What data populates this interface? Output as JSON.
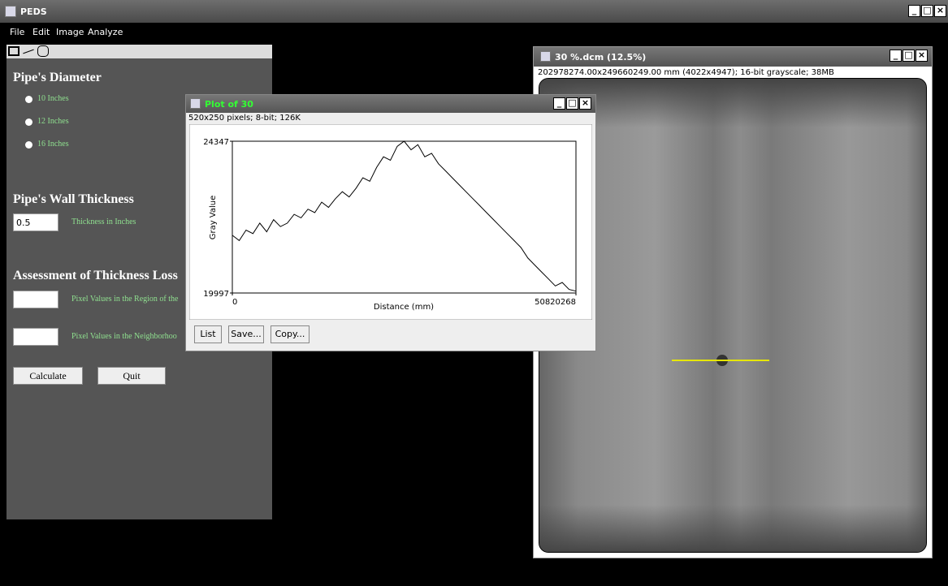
{
  "app": {
    "title": "PEDS",
    "menu": [
      "File",
      "Edit",
      "Image",
      "Analyze"
    ]
  },
  "panel": {
    "diameter_heading": "Pipe's Diameter",
    "diameter_options": [
      "10 Inches",
      "12 Inches",
      "16 Inches"
    ],
    "thickness_heading": "Pipe's Wall Thickness",
    "thickness_value": "0.5",
    "thickness_label": "Thickness in Inches",
    "assessment_heading": "Assessment of Thickness Loss",
    "region_label": "Pixel Values in the Region of the",
    "neighborhood_label": "Pixel Values in the Neighborhoo",
    "calculate": "Calculate",
    "quit": "Quit"
  },
  "plot_window": {
    "title": "Plot of 30",
    "info": "520x250 pixels; 8-bit; 126K",
    "buttons": [
      "List",
      "Save...",
      "Copy..."
    ],
    "plot": {
      "type": "line",
      "xlabel": "Distance (mm)",
      "ylabel": "Gray Value",
      "xlim": [
        0,
        50820268
      ],
      "xticks": [
        0,
        50820268
      ],
      "ylim": [
        19997,
        24347
      ],
      "yticks": [
        19997,
        24347
      ],
      "color": "#000000",
      "values": [
        21650,
        21500,
        21800,
        21700,
        22000,
        21750,
        22100,
        21900,
        22000,
        22250,
        22150,
        22400,
        22300,
        22600,
        22450,
        22700,
        22900,
        22750,
        23000,
        23300,
        23200,
        23600,
        23900,
        23800,
        24200,
        24347,
        24100,
        24250,
        23900,
        24000,
        23700,
        23500,
        23300,
        23100,
        22900,
        22700,
        22500,
        22300,
        22100,
        21900,
        21700,
        21500,
        21300,
        21000,
        20800,
        20600,
        20400,
        20200,
        20300,
        20100,
        20050
      ]
    }
  },
  "image_window": {
    "title": "30 %.dcm (12.5%)",
    "info": "202978274.00x249660249.00 mm (4022x4947); 16-bit grayscale; 38MB"
  }
}
